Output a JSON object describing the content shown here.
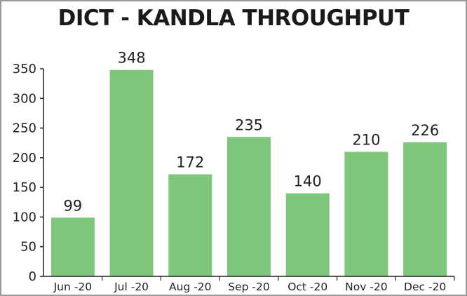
{
  "chart_data": {
    "type": "bar",
    "title": "DICT - KANDLA THROUGHPUT",
    "categories": [
      "Jun -20",
      "Jul -20",
      "Aug -20",
      "Sep -20",
      "Oct -20",
      "Nov -20",
      "Dec -20"
    ],
    "values": [
      99,
      348,
      172,
      235,
      140,
      210,
      226
    ],
    "data_labels": [
      "99",
      "348",
      "172",
      "235",
      "140",
      "210",
      "226"
    ],
    "y_ticks": [
      "0",
      "50",
      "100",
      "150",
      "200",
      "250",
      "300",
      "350"
    ],
    "ylim": [
      0,
      350
    ],
    "grid": false,
    "legend": "none",
    "bar_color": "#7dc67a",
    "axis_color": "#222222"
  }
}
